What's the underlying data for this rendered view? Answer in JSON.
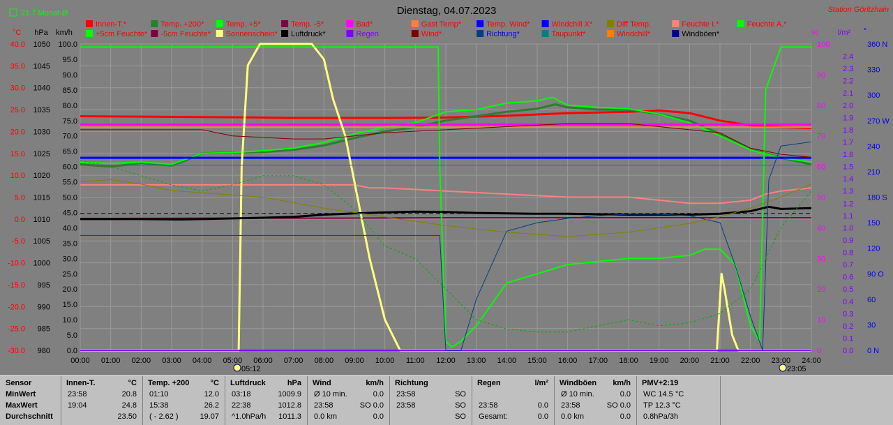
{
  "header": {
    "title": "Dienstag, 04.07.2023",
    "station": "Station Göritzhain",
    "monthly_label": "21.7 Monat-Ø",
    "unit_labels": [
      "°C",
      "hPa",
      "km/h",
      "%",
      "l/m²",
      "°"
    ]
  },
  "legend": [
    {
      "label": "Innen-T.*",
      "color": "#ff0000"
    },
    {
      "label": "Temp. +200*",
      "color": "#2e7d2e"
    },
    {
      "label": "Temp. +5*",
      "color": "#00ff00"
    },
    {
      "label": "Temp. -5*",
      "color": "#800040"
    },
    {
      "label": "Bad*",
      "color": "#ff00ff"
    },
    {
      "label": "Gast Temp*",
      "color": "#ff8040"
    },
    {
      "label": "Temp. Wind*",
      "color": "#0000ff"
    },
    {
      "label": "Windchill X*",
      "color": "#0000ff"
    },
    {
      "label": "Diff Temp.",
      "color": "#808000"
    },
    {
      "label": "Feuchte I.*",
      "color": "#ff8080"
    },
    {
      "label": "Feuchte A.*",
      "color": "#00ff00"
    },
    {
      "label": "+5cm Feuchte*",
      "color": "#00ff00"
    },
    {
      "label": "-5cm Feuchte*",
      "color": "#800040"
    },
    {
      "label": "Sonnenschein*",
      "color": "#ffff80"
    },
    {
      "label": "Luftdruck*",
      "color": "#000000"
    },
    {
      "label": "Regen",
      "color": "#8000ff"
    },
    {
      "label": "Wind*",
      "color": "#800000"
    },
    {
      "label": "Richtung*",
      "color": "#004080"
    },
    {
      "label": "Taupunkt*",
      "color": "#008080"
    },
    {
      "label": "Windchill*",
      "color": "#ff8000"
    },
    {
      "label": "Windböen*",
      "color": "#000080"
    }
  ],
  "legend_text_colors": [
    "#ff0000",
    "#ff0000",
    "#ff0000",
    "#ff0000",
    "#ff0000",
    "#ff0000",
    "#ff0000",
    "#ff0000",
    "#ff0000",
    "#ff0000",
    "#ff0000",
    "#ff0000",
    "#ff0000",
    "#ff0000",
    "#000000",
    "#8000ff",
    "#ff0000",
    "#0000ff",
    "#ff0000",
    "#ff0000",
    "#000000"
  ],
  "markers": {
    "sunrise": "05:12",
    "sunset": "23:05"
  },
  "table": {
    "row_labels": [
      "Sensor",
      "MinWert",
      "MaxWert",
      "Durchschnitt"
    ],
    "columns": [
      {
        "name": "Innen-T.",
        "unit": "°C",
        "rows": [
          [
            "23:58",
            "20.8"
          ],
          [
            "19:04",
            "24.8"
          ],
          [
            "",
            "23.50"
          ]
        ]
      },
      {
        "name": "Temp. +200",
        "unit": "°C",
        "rows": [
          [
            "01:10",
            "12.0"
          ],
          [
            "15:38",
            "26.2"
          ],
          [
            "( - 2.62 )",
            "19.07"
          ]
        ]
      },
      {
        "name": "Luftdruck",
        "unit": "hPa",
        "rows": [
          [
            "03:18",
            "1009.9"
          ],
          [
            "22:38",
            "1012.8"
          ],
          [
            "^1.0hPa/h",
            "1011.3"
          ]
        ]
      },
      {
        "name": "Wind",
        "unit": "km/h",
        "rows": [
          [
            "Ø 10 min.",
            "0.0"
          ],
          [
            "23:58",
            "SO 0.0"
          ],
          [
            "0.0 km",
            "0.0"
          ]
        ]
      },
      {
        "name": "Richtung",
        "unit": "",
        "rows": [
          [
            "23:58",
            "SO"
          ],
          [
            "23:58",
            "SO"
          ],
          [
            "",
            "SO"
          ]
        ]
      },
      {
        "name": "Regen",
        "unit": "l/m²",
        "rows": [
          [
            "",
            ""
          ],
          [
            "23:58",
            "0.0"
          ],
          [
            "Gesamt:",
            "0.0"
          ]
        ]
      },
      {
        "name": "Windböen",
        "unit": "km/h",
        "rows": [
          [
            "Ø 10 min.",
            "0.0"
          ],
          [
            "23:58",
            "SO 0.0"
          ],
          [
            "0.0 km",
            "0.0"
          ]
        ]
      },
      {
        "name": "PMV+2:19",
        "unit": "",
        "rows": [
          [
            "WC 14.5 °C",
            ""
          ],
          [
            "TP 12.3 °C",
            ""
          ],
          [
            "0.8hPa/3h",
            ""
          ]
        ]
      }
    ]
  },
  "chart_data": {
    "type": "line",
    "x_range": [
      0,
      24
    ],
    "x_ticks": [
      "00:00",
      "01:00",
      "02:00",
      "03:00",
      "04:00",
      "05:00",
      "06:00",
      "07:00",
      "08:00",
      "09:00",
      "10:00",
      "11:00",
      "12:00",
      "13:00",
      "14:00",
      "15:00",
      "16:00",
      "17:00",
      "18:00",
      "19:00",
      "20:00",
      "21:00",
      "22:00",
      "23:00",
      "24:00"
    ],
    "axes": {
      "temp_c": {
        "range": [
          -30,
          40
        ],
        "ticks": [
          "40.0",
          "35.0",
          "30.0",
          "25.0",
          "20.0",
          "15.0",
          "10.0",
          "5.0",
          "0.0",
          "-5.0",
          "-10.0",
          "-15.0",
          "-20.0",
          "-25.0",
          "-30.0"
        ]
      },
      "pressure_hpa": {
        "range": [
          980,
          1050
        ],
        "ticks": [
          "1050",
          "1045",
          "1040",
          "1035",
          "1030",
          "1025",
          "1020",
          "1015",
          "1010",
          "1005",
          "1000",
          "995",
          "990",
          "985",
          "980"
        ]
      },
      "wind_kmh": {
        "range": [
          0,
          100
        ],
        "ticks": [
          "100.0",
          "95.0",
          "90.0",
          "85.0",
          "80.0",
          "75.0",
          "70.0",
          "65.0",
          "60.0",
          "55.0",
          "50.0",
          "45.0",
          "40.0",
          "35.0",
          "30.0",
          "25.0",
          "20.0",
          "15.0",
          "10.0",
          "5.0",
          "0.0"
        ]
      },
      "humidity_pct": {
        "range": [
          0,
          100
        ],
        "ticks": [
          "100",
          "90",
          "80",
          "70",
          "60",
          "50",
          "40",
          "30",
          "20",
          "10",
          "0"
        ]
      },
      "rain_lm2": {
        "range": [
          0,
          2.5
        ],
        "ticks": [
          "2.4",
          "2.3",
          "2.2",
          "2.1",
          "2.0",
          "1.9",
          "1.8",
          "1.7",
          "1.6",
          "1.5",
          "1.4",
          "1.3",
          "1.2",
          "1.1",
          "1.0",
          "0.9",
          "0.8",
          "0.7",
          "0.6",
          "0.5",
          "0.4",
          "0.3",
          "0.2",
          "0.1",
          "0.0"
        ]
      },
      "direction_deg": {
        "range": [
          0,
          360
        ],
        "ticks": [
          "360 N",
          "330",
          "300",
          "270 W",
          "240",
          "210",
          "180 S",
          "150",
          "120",
          "90 O",
          "60",
          "30",
          "0 N"
        ]
      }
    },
    "series": [
      {
        "name": "Innen-T.*",
        "axis": "temp_c",
        "color": "#ff0000",
        "width": 3,
        "x": [
          0,
          2,
          4,
          6,
          7,
          8,
          10,
          12,
          14,
          16,
          18,
          19,
          20,
          21,
          22,
          23,
          24
        ],
        "y": [
          23.5,
          23.4,
          23.3,
          23.2,
          23.1,
          23.1,
          23.1,
          23.2,
          23.6,
          24.2,
          24.5,
          24.8,
          24.2,
          22.5,
          21.4,
          21.0,
          20.8
        ]
      },
      {
        "name": "Temp. +200*",
        "axis": "temp_c",
        "color": "#2e7d2e",
        "width": 3,
        "x": [
          0,
          0.5,
          1,
          1.2,
          2,
          2.5,
          3,
          3.5,
          4,
          5,
          6,
          7,
          8,
          9,
          10,
          11,
          12,
          13,
          14,
          15,
          15.6,
          16,
          17,
          18,
          19,
          20,
          21,
          22,
          23,
          24
        ],
        "y": [
          12.5,
          12.2,
          12.0,
          12.1,
          12.8,
          12.5,
          12.2,
          13.5,
          15.0,
          15.2,
          15.3,
          15.8,
          16.8,
          18.5,
          20.0,
          21.0,
          22.5,
          23.5,
          24.5,
          25.2,
          26.2,
          25.5,
          25.0,
          25.0,
          24.0,
          22.5,
          19.5,
          16.0,
          14.0,
          12.5
        ]
      },
      {
        "name": "Temp. +5*",
        "axis": "temp_c",
        "color": "#00ff00",
        "width": 2,
        "x": [
          0,
          1,
          2,
          3,
          4,
          5,
          6,
          7,
          8,
          9,
          10,
          11,
          12,
          13,
          14,
          15,
          15.5,
          16,
          17,
          18,
          19,
          20,
          21,
          22,
          23,
          24
        ],
        "y": [
          13.0,
          12.7,
          13.0,
          12.5,
          15.0,
          15.2,
          15.6,
          16.2,
          17.5,
          19.5,
          21.0,
          22.0,
          24.5,
          25.0,
          26.5,
          27.0,
          27.8,
          26.0,
          25.5,
          25.2,
          24.0,
          22.0,
          19.0,
          15.8,
          14.0,
          13.0
        ]
      },
      {
        "name": "Temp. -5*",
        "axis": "temp_c",
        "color": "#800040",
        "width": 2,
        "x": [
          0,
          4,
          8,
          12,
          16,
          20,
          24
        ],
        "y": [
          0.1,
          0.2,
          0.2,
          0.3,
          0.3,
          0.3,
          0.3
        ]
      },
      {
        "name": "Bad*",
        "axis": "temp_c",
        "color": "#ff00ff",
        "width": 3,
        "x": [
          0,
          4,
          8,
          12,
          16,
          20,
          24
        ],
        "y": [
          21.6,
          21.6,
          21.6,
          21.6,
          21.6,
          21.6,
          21.6
        ]
      },
      {
        "name": "Gast Temp*",
        "axis": "temp_c",
        "color": "#ff8040",
        "width": 2,
        "x": [
          0,
          4,
          8,
          12,
          16,
          20,
          24
        ],
        "y": [
          21.0,
          21.0,
          21.0,
          21.0,
          21.0,
          21.0,
          21.0
        ]
      },
      {
        "name": "Windchill X*",
        "axis": "temp_c",
        "color": "#0000ff",
        "width": 3,
        "x": [
          0,
          4,
          8,
          12,
          16,
          20,
          24
        ],
        "y": [
          14.0,
          14.0,
          14.0,
          14.0,
          14.0,
          14.0,
          14.0
        ]
      },
      {
        "name": "Feuchte I.*",
        "axis": "humidity_pct",
        "color": "#ff8080",
        "width": 2,
        "x": [
          0,
          1,
          2,
          4,
          8,
          9,
          9.5,
          10,
          12,
          14,
          16,
          17,
          18,
          19,
          20,
          21,
          22,
          22.5,
          23,
          24
        ],
        "y": [
          54,
          54,
          54,
          54,
          54,
          54,
          53,
          53,
          52,
          51,
          50,
          50,
          50,
          49,
          48,
          48,
          49,
          51,
          52,
          53
        ]
      },
      {
        "name": "Feuchte A.*",
        "axis": "humidity_pct",
        "color": "#00ff00",
        "width": 2,
        "x": [
          0,
          11.75,
          11.8,
          12,
          12.2,
          12.5,
          13,
          14,
          15,
          16,
          17,
          18,
          19,
          20,
          20.5,
          21,
          21.5,
          22,
          22.3,
          22.5,
          23,
          24
        ],
        "y": [
          99,
          99,
          60,
          3,
          1,
          3,
          8,
          22,
          25,
          28,
          29,
          30,
          30,
          31,
          33,
          33,
          28,
          8,
          3,
          85,
          99,
          99
        ]
      },
      {
        "name": "Sonnenschein*",
        "axis": "wind_kmh",
        "color": "#ffff80",
        "width": 3,
        "x": [
          0,
          5.2,
          5.3,
          5.5,
          5.9,
          6.2,
          7.6,
          8.0,
          8.3,
          8.7,
          9.0,
          9.5,
          10,
          10.5,
          11,
          20.9,
          21.05,
          21.15,
          21.4,
          21.6,
          24
        ],
        "y": [
          0,
          0,
          60,
          93,
          100,
          100,
          100,
          95,
          82,
          70,
          55,
          30,
          10,
          0,
          0,
          0,
          25,
          20,
          5,
          0,
          0
        ]
      },
      {
        "name": "Luftdruck*",
        "axis": "pressure_hpa",
        "color": "#000000",
        "width": 3,
        "x": [
          0,
          2,
          3.3,
          4,
          6,
          7,
          8,
          9,
          10,
          11,
          12,
          13,
          14,
          15,
          16,
          17,
          18,
          19,
          20,
          21,
          22,
          22.6,
          23,
          24
        ],
        "y": [
          1010.0,
          1010.0,
          1009.9,
          1010.0,
          1010.3,
          1010.5,
          1011.0,
          1011.3,
          1011.5,
          1011.7,
          1011.6,
          1011.4,
          1011.3,
          1011.2,
          1011.2,
          1011.1,
          1011.0,
          1011.0,
          1011.0,
          1011.2,
          1011.8,
          1012.8,
          1012.3,
          1012.5
        ]
      },
      {
        "name": "Regen",
        "axis": "rain_lm2",
        "color": "#8000ff",
        "width": 2,
        "x": [
          0,
          24
        ],
        "y": [
          0,
          0
        ]
      },
      {
        "name": "Richtung*",
        "axis": "direction_deg",
        "color": "#004080",
        "width": 1,
        "x": [
          0,
          11.8,
          12.0,
          12.5,
          13,
          14,
          15,
          16,
          17,
          18,
          19,
          20,
          21,
          21.5,
          22,
          22.4,
          22.6,
          23,
          24
        ],
        "y": [
          135,
          135,
          0,
          0,
          60,
          140,
          150,
          155,
          158,
          160,
          160,
          158,
          150,
          100,
          40,
          0,
          200,
          240,
          245
        ]
      },
      {
        "name": "Taupunkt*",
        "axis": "temp_c",
        "color": "#008080",
        "width": 1,
        "x": [
          0,
          4,
          8,
          12,
          16,
          20,
          24
        ],
        "y": [
          12.3,
          12.3,
          12.3,
          12.3,
          12.3,
          12.3,
          12.3
        ]
      },
      {
        "name": "Diff Temp.",
        "axis": "temp_c",
        "color": "#808000",
        "width": 1,
        "x": [
          0,
          1,
          2,
          3,
          4,
          6,
          8,
          10,
          12,
          14,
          16,
          18,
          20,
          21,
          22,
          23,
          24
        ],
        "y": [
          8.5,
          9.0,
          8.0,
          6.5,
          6.0,
          5.0,
          2.5,
          0.5,
          -1.5,
          -3,
          -4,
          -3,
          -1,
          0.5,
          2.5,
          5,
          8
        ]
      },
      {
        "name": "+5cm Feuchte*",
        "axis": "humidity_pct",
        "color": "#00aa00",
        "width": 1,
        "dashed": true,
        "x": [
          0,
          1,
          2,
          3,
          4,
          5,
          6,
          7,
          8,
          9,
          10,
          11,
          12,
          13,
          14,
          15,
          16,
          17,
          18,
          19,
          20,
          21,
          22,
          23,
          24
        ],
        "y": [
          62,
          60,
          57,
          54,
          52,
          54,
          57,
          57,
          54,
          46,
          34,
          30,
          20,
          10,
          7,
          6,
          6,
          8,
          10,
          8,
          9,
          12,
          20,
          40,
          52
        ]
      },
      {
        "name": "Wind*",
        "axis": "wind_kmh",
        "color": "#800000",
        "width": 1,
        "x": [
          0,
          4,
          5,
          7,
          8,
          9,
          10,
          12,
          14,
          16,
          18,
          19,
          20,
          21,
          22,
          23,
          24
        ],
        "y": [
          72,
          72,
          70,
          69,
          69,
          70,
          71,
          72,
          73,
          74,
          74,
          73,
          72,
          71,
          66,
          64,
          63
        ]
      }
    ]
  }
}
